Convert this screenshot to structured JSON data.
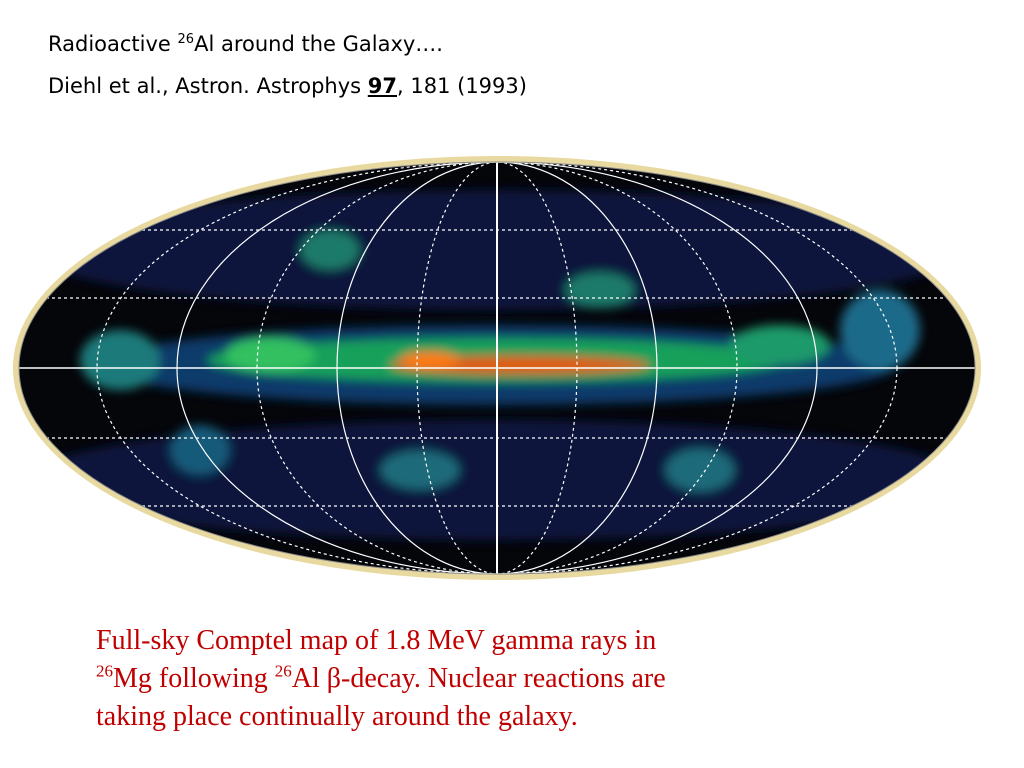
{
  "header": {
    "line1": {
      "text_before": "Radioactive ",
      "superscript": "26",
      "text_after": "Al around the Galaxy…."
    },
    "line2": {
      "text_before": "Diehl et al., Astron. Astrophys ",
      "volume": "97",
      "text_after": ", 181 (1993)"
    }
  },
  "caption": {
    "line1": "Full-sky Comptel map of 1.8 MeV gamma rays in",
    "sup1": "26",
    "text2": "Mg following ",
    "sup2": "26",
    "text3": "Al  β-decay. Nuclear reactions are",
    "line3": "taking place continually around the galaxy."
  }
}
